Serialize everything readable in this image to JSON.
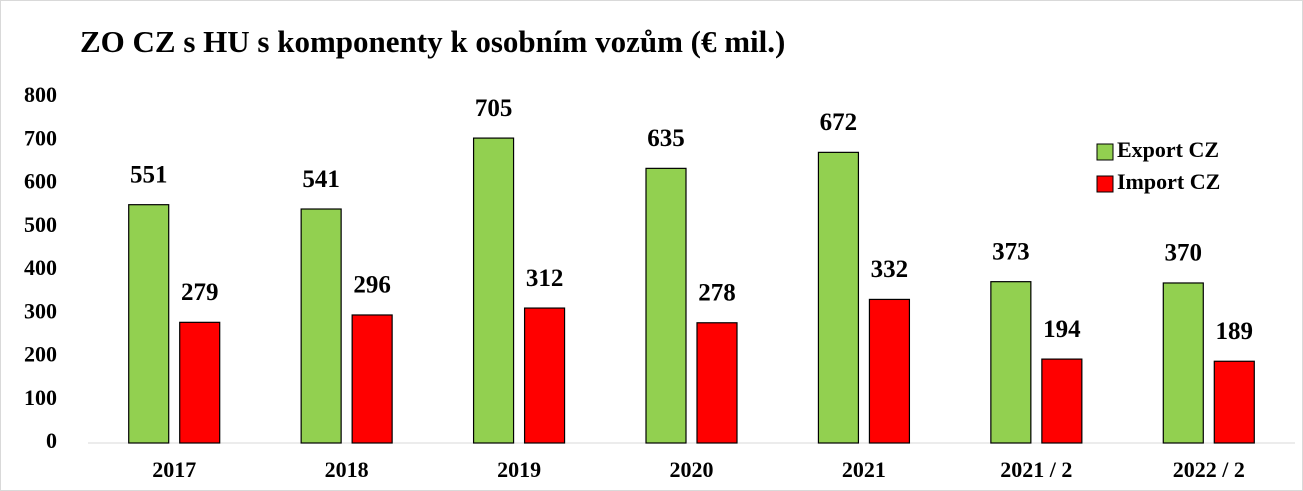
{
  "chart_data": {
    "type": "bar",
    "title": "ZO CZ s HU s komponenty k osobním vozům (€ mil.)",
    "categories": [
      "2017",
      "2018",
      "2019",
      "2020",
      "2021",
      "2021 / 2",
      "2022 / 2"
    ],
    "series": [
      {
        "name": "Export CZ",
        "color": "#92d050",
        "values": [
          551,
          541,
          705,
          635,
          672,
          373,
          370
        ]
      },
      {
        "name": "Import CZ",
        "color": "#ff0000",
        "values": [
          279,
          296,
          312,
          278,
          332,
          194,
          189
        ]
      }
    ],
    "ylim": [
      0,
      800
    ],
    "yticks": [
      0,
      100,
      200,
      300,
      400,
      500,
      600,
      700,
      800
    ],
    "grid": false,
    "legend": "top-right"
  }
}
